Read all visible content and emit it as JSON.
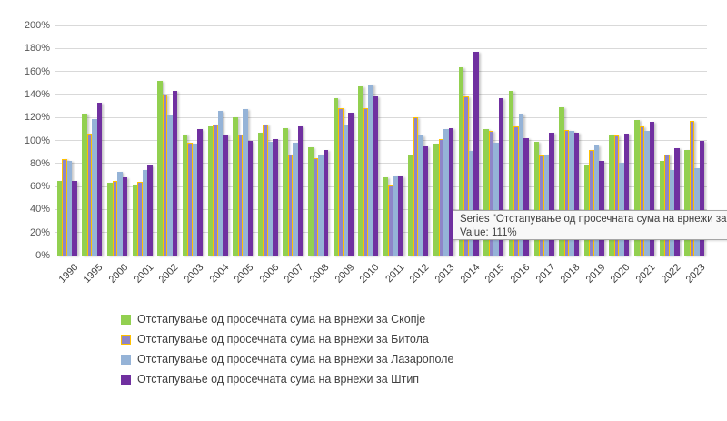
{
  "chart_data": {
    "type": "bar",
    "title": "",
    "xlabel": "",
    "ylabel": "",
    "ylim": [
      0,
      200
    ],
    "ytick_step": 20,
    "ytick_labels": [
      "0%",
      "20%",
      "40%",
      "60%",
      "80%",
      "100%",
      "120%",
      "140%",
      "160%",
      "180%",
      "200%"
    ],
    "grid": true,
    "legend_position": "bottom-left",
    "categories": [
      "1990",
      "1995",
      "2000",
      "2001",
      "2002",
      "2003",
      "2004",
      "2005",
      "2006",
      "2007",
      "2008",
      "2009",
      "2010",
      "2011",
      "2012",
      "2013",
      "2014",
      "2015",
      "2016",
      "2017",
      "2018",
      "2019",
      "2020",
      "2021",
      "2022",
      "2023"
    ],
    "series": [
      {
        "name": "Отстапување од просечната сума на врнежи за Скопје",
        "color": "#92D050",
        "values": [
          65,
          123,
          63,
          62,
          152,
          105,
          112,
          120,
          107,
          111,
          94,
          137,
          147,
          68,
          87,
          97,
          164,
          110,
          143,
          99,
          129,
          78,
          105,
          118,
          82,
          92
        ]
      },
      {
        "name": "Отстапување од просечната сума на врнежи за Битола",
        "color": "#8E85C8",
        "border_color": "#FFC000",
        "values": [
          84,
          106,
          65,
          64,
          140,
          98,
          114,
          105,
          114,
          88,
          85,
          128,
          128,
          61,
          120,
          101,
          138,
          108,
          112,
          87,
          109,
          92,
          104,
          112,
          88,
          117
        ]
      },
      {
        "name": "Отстапување од просечната сума на врнежи за Лазарополе",
        "color": "#95B3D7",
        "values": [
          82,
          119,
          73,
          74,
          122,
          97,
          126,
          127,
          99,
          98,
          88,
          113,
          149,
          69,
          104,
          110,
          91,
          98,
          123,
          88,
          108,
          96,
          81,
          108,
          74,
          76
        ]
      },
      {
        "name": "Отстапување од просечната сума на врнежи за Штип",
        "color": "#7030A0",
        "values": [
          65,
          133,
          68,
          78,
          143,
          110,
          105,
          100,
          101,
          112,
          92,
          124,
          138,
          69,
          95,
          111,
          177,
          137,
          102,
          107,
          107,
          82,
          106,
          116,
          93,
          100
        ]
      }
    ]
  },
  "tooltip": {
    "series_line": "Series \"Отстапување од просечната сума на врнежи за",
    "value_line": "Value: 111%"
  }
}
